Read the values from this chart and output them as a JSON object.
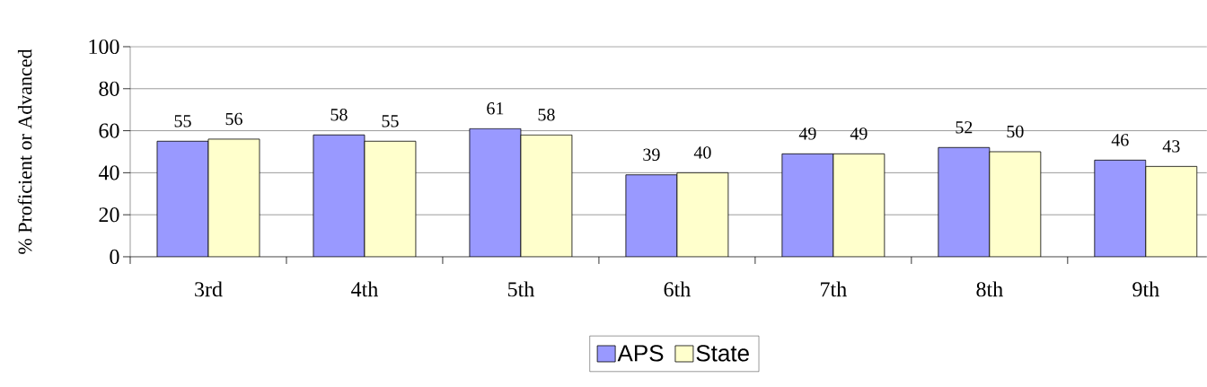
{
  "chart_data": {
    "type": "bar",
    "ylabel": "% Proficient or Advanced",
    "categories": [
      "3rd",
      "4th",
      "5th",
      "6th",
      "7th",
      "8th",
      "9th"
    ],
    "series": [
      {
        "name": "APS",
        "color": "#9999ff",
        "values": [
          55,
          58,
          61,
          39,
          49,
          52,
          46
        ]
      },
      {
        "name": "State",
        "color": "#ffffcc",
        "values": [
          56,
          55,
          58,
          40,
          49,
          50,
          43
        ]
      }
    ],
    "ylim": [
      0,
      100
    ],
    "yticks": [
      0,
      20,
      40,
      60,
      80,
      100
    ],
    "grid": "y",
    "legend": "bottom",
    "data_labels": true
  }
}
